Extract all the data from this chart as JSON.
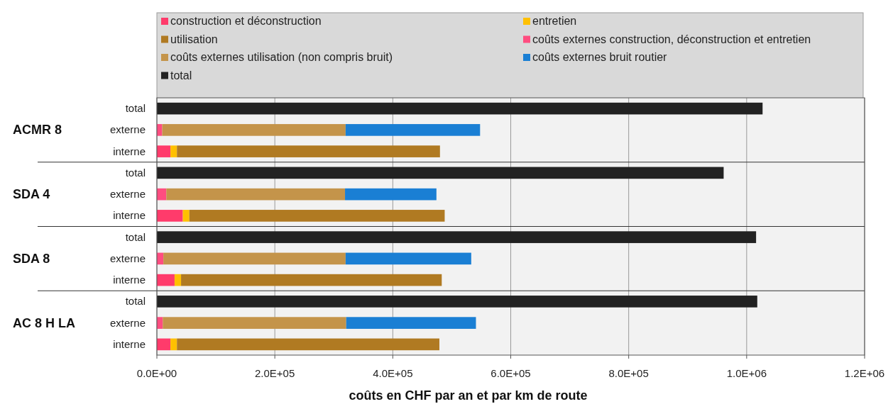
{
  "chart_data": {
    "type": "bar",
    "orientation": "horizontal",
    "stacked": true,
    "xlabel": "coûts en CHF par an et par km de route",
    "categories": [
      "total",
      "externe",
      "interne",
      "total",
      "externe",
      "interne",
      "total",
      "externe",
      "interne",
      "total",
      "externe",
      "interne"
    ],
    "annotations": [
      "ACMR 8",
      "SDA 4",
      "SDA 8",
      "AC 8 H LA"
    ],
    "series": [
      {
        "name": "construction et déconstruction",
        "color": "#ff3b6b",
        "values": [
          null,
          null,
          23000,
          null,
          null,
          44000,
          null,
          null,
          30000,
          null,
          null,
          23000
        ]
      },
      {
        "name": "entretien",
        "color": "#ffc000",
        "values": [
          null,
          null,
          11000,
          null,
          null,
          11000,
          null,
          null,
          11000,
          null,
          null,
          11000
        ]
      },
      {
        "name": "utilisation",
        "color": "#b07a22",
        "values": [
          null,
          null,
          446000,
          null,
          null,
          433000,
          null,
          null,
          442000,
          null,
          null,
          445000
        ]
      },
      {
        "name": "coûts externes construction, déconstruction et entretien",
        "color": "#ff4d80",
        "values": [
          null,
          9000,
          null,
          null,
          16000,
          null,
          null,
          11000,
          null,
          null,
          10000,
          null
        ]
      },
      {
        "name": "coûts externes utilisation (non compris bruit)",
        "color": "#c4944a",
        "values": [
          null,
          311000,
          null,
          null,
          303000,
          null,
          null,
          309000,
          null,
          null,
          311000,
          null
        ]
      },
      {
        "name": "coûts externes bruit routier",
        "color": "#1a7fd4",
        "values": [
          null,
          228000,
          null,
          null,
          155000,
          null,
          null,
          213000,
          null,
          null,
          220000,
          null
        ]
      },
      {
        "name": "total",
        "color": "#222222",
        "values": [
          1027000,
          null,
          null,
          961000,
          null,
          null,
          1016000,
          null,
          null,
          1018000,
          null,
          null
        ]
      }
    ],
    "xlim": [
      0,
      1200000
    ],
    "xticks": [
      {
        "value": 0,
        "label": "0.0E+00"
      },
      {
        "value": 200000,
        "label": "2.0E+05"
      },
      {
        "value": 400000,
        "label": "4.0E+05"
      },
      {
        "value": 600000,
        "label": "6.0E+05"
      },
      {
        "value": 800000,
        "label": "8.0E+05"
      },
      {
        "value": 1000000,
        "label": "1.0E+06"
      },
      {
        "value": 1200000,
        "label": "1.2E+06"
      }
    ],
    "grid": "x",
    "legend": "top"
  }
}
